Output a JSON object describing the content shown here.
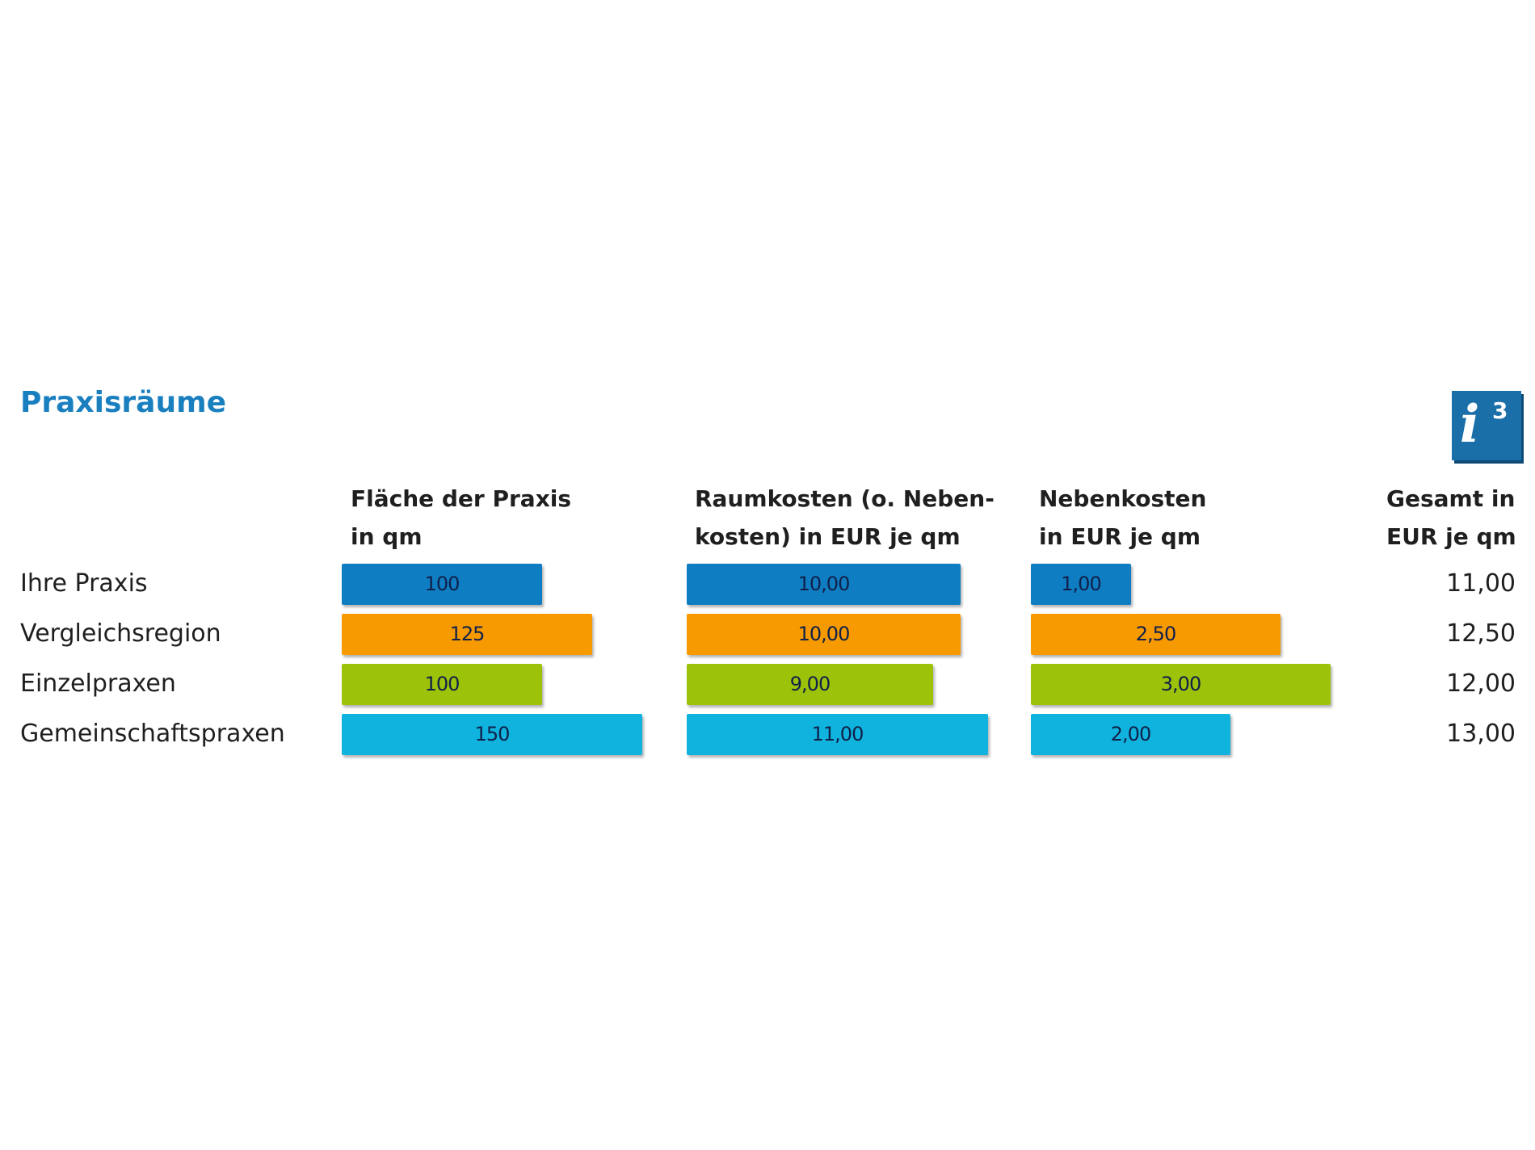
{
  "chart_data": {
    "type": "table",
    "title": "Praxisräume",
    "badge": {
      "icon": "info-icon",
      "mark": "i",
      "superscript": "3"
    },
    "columns": [
      {
        "label_lines": [
          "Fläche der Praxis",
          "in qm"
        ]
      },
      {
        "label_lines": [
          "Raumkosten (o. Neben-",
          "kosten) in EUR je qm"
        ]
      },
      {
        "label_lines": [
          "Nebenkosten",
          "in EUR je qm"
        ]
      },
      {
        "label_lines": [
          "Gesamt in",
          "EUR je qm"
        ]
      }
    ],
    "categories": [
      "Ihre Praxis",
      "Vergleichsregion",
      "Einzelpraxen",
      "Gemeinschaftspraxen"
    ],
    "colors": [
      "#0f7dc2",
      "#f79a00",
      "#9dc20a",
      "#0fb3dd"
    ],
    "series": [
      {
        "values": [
          100,
          125,
          100,
          150
        ],
        "labels": [
          "100",
          "125",
          "100",
          "150"
        ]
      },
      {
        "values": [
          10,
          10,
          9,
          11
        ],
        "labels": [
          "10,00",
          "10,00",
          "9,00",
          "11,00"
        ]
      },
      {
        "values": [
          1,
          2.5,
          3,
          2
        ],
        "labels": [
          "1,00",
          "2,50",
          "3,00",
          "2,00"
        ]
      }
    ],
    "totals": [
      "11,00",
      "12,50",
      "12,00",
      "13,00"
    ]
  }
}
